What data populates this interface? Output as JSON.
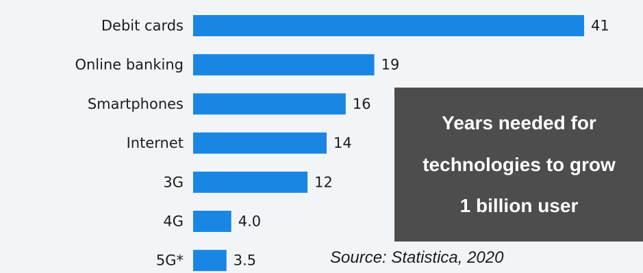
{
  "chart_data": {
    "type": "bar",
    "orientation": "horizontal",
    "categories": [
      "Debit cards",
      "Online banking",
      "Smartphones",
      "Internet",
      "3G",
      "4G",
      "5G*"
    ],
    "values": [
      41,
      19,
      16,
      14,
      12,
      4.0,
      3.5
    ],
    "value_labels": [
      "41",
      "19",
      "16",
      "14",
      "12",
      "4.0",
      "3.5"
    ],
    "xlim": [
      0,
      41
    ],
    "grid": false,
    "legend": "none"
  },
  "title_lines": [
    "Years needed for",
    "technologies to grow",
    "1 billion user"
  ],
  "source": "Source: Statistica, 2020",
  "colors": {
    "bar": "#1a86e3",
    "background": "#f1f5f8",
    "title_box": "#4d4d4d",
    "title_text": "#ffffff",
    "text": "#1c1c1c"
  }
}
